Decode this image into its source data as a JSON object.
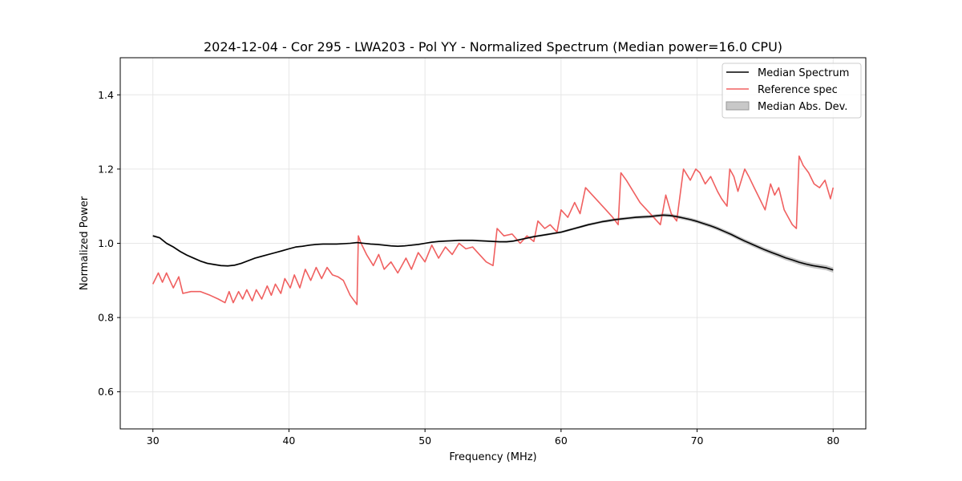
{
  "chart_data": {
    "type": "line",
    "title": "2024-12-04 - Cor 295 - LWA203 - Pol YY - Normalized Spectrum (Median power=16.0 CPU)",
    "xlabel": "Frequency (MHz)",
    "ylabel": "Normalized Power",
    "xlim": [
      27.6,
      82.4
    ],
    "ylim": [
      0.5,
      1.5
    ],
    "xticks": [
      30,
      40,
      50,
      60,
      70,
      80
    ],
    "yticks": [
      0.6,
      0.8,
      1.0,
      1.2,
      1.4
    ],
    "xtick_labels": [
      "30",
      "40",
      "50",
      "60",
      "70",
      "80"
    ],
    "ytick_labels": [
      "0.6",
      "0.8",
      "1.0",
      "1.2",
      "1.4"
    ],
    "grid": true,
    "legend_position": "top-right",
    "legend": [
      "Median Spectrum",
      "Reference spec",
      "Median Abs. Dev."
    ],
    "colors": {
      "median": "#000000",
      "reference": "#f06060",
      "mad": "#b0b0b0"
    },
    "series": [
      {
        "name": "Median Spectrum",
        "x": [
          30,
          30.5,
          31,
          31.5,
          32,
          32.5,
          33,
          33.5,
          34,
          34.5,
          35,
          35.5,
          36,
          36.5,
          37,
          37.5,
          38,
          38.5,
          39,
          39.5,
          40,
          40.5,
          41,
          41.5,
          42,
          42.5,
          43,
          43.5,
          44,
          44.5,
          45,
          45.5,
          46,
          46.5,
          47,
          47.5,
          48,
          48.5,
          49,
          49.5,
          50,
          50.5,
          51,
          51.5,
          52,
          52.5,
          53,
          53.5,
          54,
          54.5,
          55,
          55.5,
          56,
          56.5,
          57,
          57.5,
          58,
          58.5,
          59,
          59.5,
          60,
          60.5,
          61,
          61.5,
          62,
          62.5,
          63,
          63.5,
          64,
          64.5,
          65,
          65.5,
          66,
          66.5,
          67,
          67.5,
          68,
          68.5,
          69,
          69.5,
          70,
          70.5,
          71,
          71.5,
          72,
          72.5,
          73,
          73.5,
          74,
          74.5,
          75,
          75.5,
          76,
          76.5,
          77,
          77.5,
          78,
          78.5,
          79,
          79.5,
          80
        ],
        "values": [
          1.02,
          1.015,
          1.0,
          0.99,
          0.978,
          0.968,
          0.96,
          0.952,
          0.946,
          0.943,
          0.94,
          0.939,
          0.941,
          0.946,
          0.953,
          0.96,
          0.965,
          0.97,
          0.975,
          0.98,
          0.985,
          0.99,
          0.992,
          0.995,
          0.997,
          0.998,
          0.998,
          0.998,
          0.999,
          1.0,
          1.002,
          1.0,
          0.998,
          0.997,
          0.995,
          0.993,
          0.992,
          0.993,
          0.995,
          0.997,
          1.0,
          1.003,
          1.005,
          1.006,
          1.007,
          1.008,
          1.008,
          1.008,
          1.007,
          1.006,
          1.005,
          1.004,
          1.004,
          1.006,
          1.01,
          1.014,
          1.018,
          1.021,
          1.024,
          1.027,
          1.03,
          1.035,
          1.04,
          1.045,
          1.05,
          1.054,
          1.058,
          1.061,
          1.064,
          1.066,
          1.068,
          1.07,
          1.071,
          1.072,
          1.074,
          1.076,
          1.075,
          1.072,
          1.068,
          1.064,
          1.059,
          1.053,
          1.047,
          1.04,
          1.032,
          1.024,
          1.015,
          1.006,
          0.998,
          0.99,
          0.982,
          0.975,
          0.968,
          0.961,
          0.955,
          0.949,
          0.944,
          0.94,
          0.937,
          0.934,
          0.928
        ]
      },
      {
        "name": "Reference spec",
        "x": [
          30,
          30.4,
          30.7,
          31.0,
          31.5,
          31.9,
          32.2,
          32.8,
          33.5,
          34.2,
          34.8,
          35.3,
          35.6,
          35.9,
          36.3,
          36.6,
          36.9,
          37.3,
          37.6,
          38.0,
          38.4,
          38.7,
          39.0,
          39.4,
          39.7,
          40.1,
          40.4,
          40.8,
          41.2,
          41.6,
          42.0,
          42.4,
          42.8,
          43.2,
          43.6,
          44.0,
          44.5,
          45.0,
          45.1,
          45.3,
          45.7,
          46.2,
          46.6,
          47.0,
          47.5,
          48.0,
          48.6,
          49.0,
          49.5,
          50.0,
          50.5,
          51.0,
          51.5,
          52.0,
          52.5,
          53.0,
          53.5,
          54.0,
          54.5,
          55.0,
          55.3,
          55.8,
          56.4,
          57.0,
          57.5,
          58.0,
          58.3,
          58.8,
          59.2,
          59.7,
          60.0,
          60.5,
          61.0,
          61.4,
          61.8,
          62.3,
          62.8,
          63.3,
          63.8,
          64.2,
          64.4,
          64.8,
          65.3,
          65.8,
          66.3,
          66.8,
          67.3,
          67.7,
          68.1,
          68.5,
          69.0,
          69.5,
          69.9,
          70.2,
          70.6,
          71.0,
          71.5,
          71.8,
          72.2,
          72.4,
          72.7,
          73.0,
          73.5,
          73.8,
          74.2,
          74.6,
          75.0,
          75.4,
          75.7,
          76.0,
          76.4,
          76.7,
          77.0,
          77.3,
          77.5,
          77.8,
          78.2,
          78.6,
          79.0,
          79.4,
          79.8,
          80.0
        ],
        "values": [
          0.89,
          0.92,
          0.895,
          0.92,
          0.88,
          0.91,
          0.865,
          0.87,
          0.87,
          0.86,
          0.85,
          0.84,
          0.87,
          0.84,
          0.87,
          0.85,
          0.875,
          0.845,
          0.875,
          0.85,
          0.885,
          0.86,
          0.89,
          0.865,
          0.905,
          0.88,
          0.915,
          0.88,
          0.93,
          0.9,
          0.935,
          0.905,
          0.935,
          0.915,
          0.91,
          0.9,
          0.86,
          0.835,
          1.02,
          1.0,
          0.97,
          0.94,
          0.97,
          0.93,
          0.95,
          0.92,
          0.96,
          0.93,
          0.975,
          0.95,
          0.995,
          0.96,
          0.99,
          0.97,
          1.0,
          0.985,
          0.99,
          0.97,
          0.95,
          0.94,
          1.04,
          1.02,
          1.025,
          1.0,
          1.02,
          1.005,
          1.06,
          1.04,
          1.05,
          1.03,
          1.09,
          1.07,
          1.11,
          1.08,
          1.15,
          1.13,
          1.11,
          1.09,
          1.07,
          1.05,
          1.19,
          1.17,
          1.14,
          1.11,
          1.09,
          1.07,
          1.05,
          1.13,
          1.08,
          1.06,
          1.2,
          1.17,
          1.2,
          1.19,
          1.16,
          1.18,
          1.14,
          1.12,
          1.1,
          1.2,
          1.18,
          1.14,
          1.2,
          1.18,
          1.15,
          1.12,
          1.09,
          1.16,
          1.13,
          1.15,
          1.09,
          1.07,
          1.05,
          1.04,
          1.235,
          1.21,
          1.19,
          1.16,
          1.15,
          1.17,
          1.12,
          1.15
        ]
      },
      {
        "name": "Median Abs. Dev.",
        "x": [
          30,
          40,
          50,
          60,
          65,
          70,
          75,
          80
        ],
        "deviation": [
          0.003,
          0.002,
          0.002,
          0.003,
          0.004,
          0.005,
          0.006,
          0.007
        ]
      }
    ]
  }
}
